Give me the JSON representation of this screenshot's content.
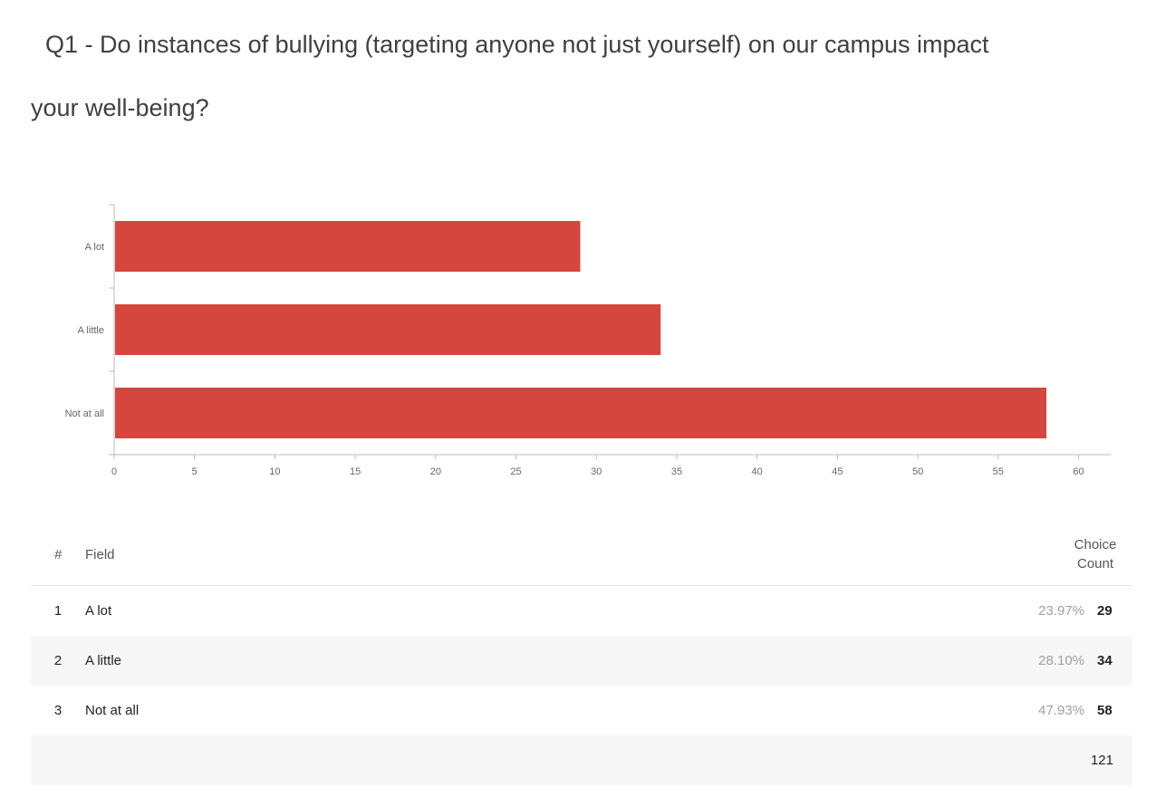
{
  "question": {
    "title_line1": "Q1 - Do instances of bullying (targeting anyone not just yourself) on our campus impact",
    "title_line2": "your well-being?"
  },
  "colors": {
    "bar": "#d5473e",
    "axis": "#bbbbbb",
    "tick_label": "#666666"
  },
  "chart_data": {
    "type": "bar",
    "orientation": "horizontal",
    "categories": [
      "A lot",
      "A little",
      "Not at all"
    ],
    "values": [
      29,
      34,
      58
    ],
    "title": "",
    "xlabel": "",
    "ylabel": "",
    "xlim": [
      0,
      62
    ],
    "xticks": [
      0,
      5,
      10,
      15,
      20,
      25,
      30,
      35,
      40,
      45,
      50,
      55,
      60
    ],
    "grid": false,
    "legend": "none"
  },
  "table": {
    "headers": {
      "num": "#",
      "field": "Field",
      "count_line1": "Choice",
      "count_line2": "Count"
    },
    "rows": [
      {
        "num": "1",
        "field": "A lot",
        "pct": "23.97%",
        "count": "29"
      },
      {
        "num": "2",
        "field": "A little",
        "pct": "28.10%",
        "count": "34"
      },
      {
        "num": "3",
        "field": "Not at all",
        "pct": "47.93%",
        "count": "58"
      }
    ],
    "total": "121"
  }
}
